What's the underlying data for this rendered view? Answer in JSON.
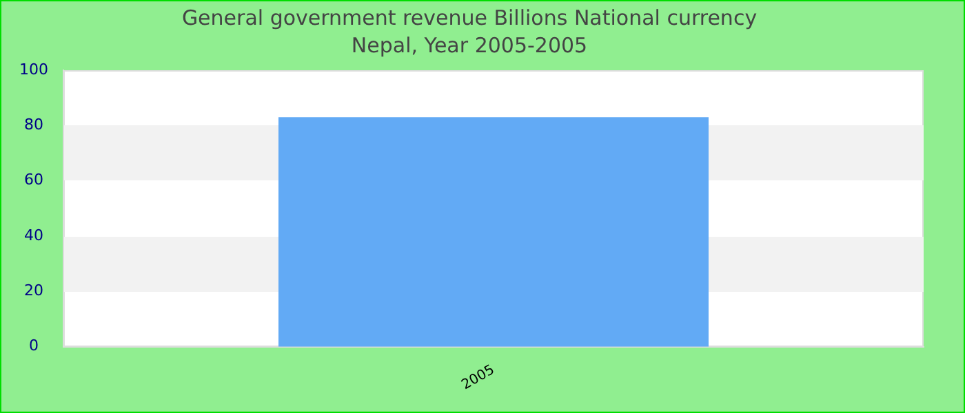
{
  "chart_data": {
    "type": "bar",
    "title": "General government revenue Billions National currency",
    "subtitle": "Nepal, Year 2005-2005",
    "categories": [
      "2005"
    ],
    "values": [
      83
    ],
    "color": "#62aaf5",
    "ylim": [
      0,
      100
    ],
    "yticks": [
      0,
      20,
      40,
      60,
      80,
      100
    ]
  }
}
